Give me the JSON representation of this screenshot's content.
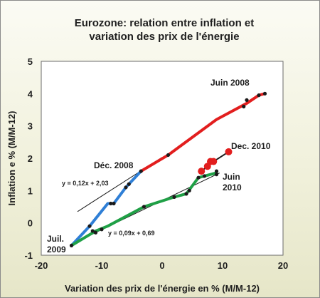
{
  "chart_data": {
    "type": "line",
    "title_line1": "Eurozone: relation entre inflation et",
    "title_line2": "variation des prix de  l'énergie",
    "xlabel": "Variation des prix de l'énergie en % (M/M-12)",
    "ylabel": "Inflation e % (M/M-12)",
    "xlim": [
      -20,
      20
    ],
    "ylim": [
      -1,
      5
    ],
    "xticks": [
      -20,
      -10,
      0,
      10,
      20
    ],
    "yticks": [
      -1,
      0,
      1,
      2,
      3,
      4,
      5
    ],
    "grid": false,
    "colors": {
      "red": "#e21e1e",
      "blue": "#2f7fd6",
      "green": "#1fa046",
      "black": "#1a1a1a"
    },
    "series": [
      {
        "color": "red",
        "x": [
          -3.5,
          1.0,
          9.0,
          14.0,
          16.0,
          17.0
        ],
        "y": [
          1.6,
          2.1,
          3.2,
          3.7,
          3.95,
          4.0
        ]
      },
      {
        "color": "blue",
        "x": [
          -15,
          -12,
          -9,
          -8,
          -6,
          -5.5,
          -3.5
        ],
        "y": [
          -0.7,
          -0.1,
          0.6,
          0.6,
          1.1,
          1.2,
          1.6
        ]
      },
      {
        "color": "green",
        "x": [
          -15,
          -11,
          -9,
          -3,
          2,
          4,
          6,
          7,
          9
        ],
        "y": [
          -0.7,
          -0.25,
          -0.1,
          0.5,
          0.8,
          0.9,
          1.4,
          1.45,
          1.55
        ]
      },
      {
        "color": "black",
        "x": [
          6.5,
          7.5,
          8.0,
          8.5,
          11.0
        ],
        "y": [
          1.6,
          1.75,
          1.9,
          1.9,
          2.2
        ]
      }
    ],
    "marker_points": {
      "color": "black",
      "x": [
        -15,
        -12,
        -11.5,
        -11,
        -10,
        -8.5,
        -8,
        -6,
        -5.5,
        -3.5,
        -3,
        1,
        2,
        4,
        4.5,
        6,
        7,
        9,
        9,
        13.5,
        14,
        16,
        17
      ],
      "y": [
        -0.7,
        -0.1,
        -0.25,
        -0.3,
        -0.2,
        0.6,
        0.6,
        1.1,
        1.2,
        1.6,
        0.5,
        2.1,
        0.8,
        0.9,
        1.0,
        1.4,
        1.45,
        1.5,
        1.6,
        3.6,
        3.8,
        3.95,
        4.0
      ]
    },
    "highlight_points": {
      "color": "red",
      "x": [
        6.5,
        7.5,
        8.0,
        8.5,
        11.0
      ],
      "y": [
        1.6,
        1.75,
        1.9,
        1.9,
        2.2
      ]
    },
    "trendlines": [
      {
        "equation": "y = 0,12x + 2,03",
        "slope": 0.12,
        "intercept": 2.03,
        "x_range": [
          -14,
          0
        ]
      },
      {
        "equation": "y = 0,09x + 0,69",
        "slope": 0.09,
        "intercept": 0.69,
        "x_range": [
          -15,
          9.5
        ]
      }
    ],
    "annotations": {
      "juin_2008": "Juin 2008",
      "dec_2008": "Déc. 2008",
      "dec_2010": "Dec. 2010",
      "juin_2010_line1": "Juin",
      "juin_2010_line2": "2010",
      "juil_2009_line1": "Juil.",
      "juil_2009_line2": "2009"
    }
  }
}
